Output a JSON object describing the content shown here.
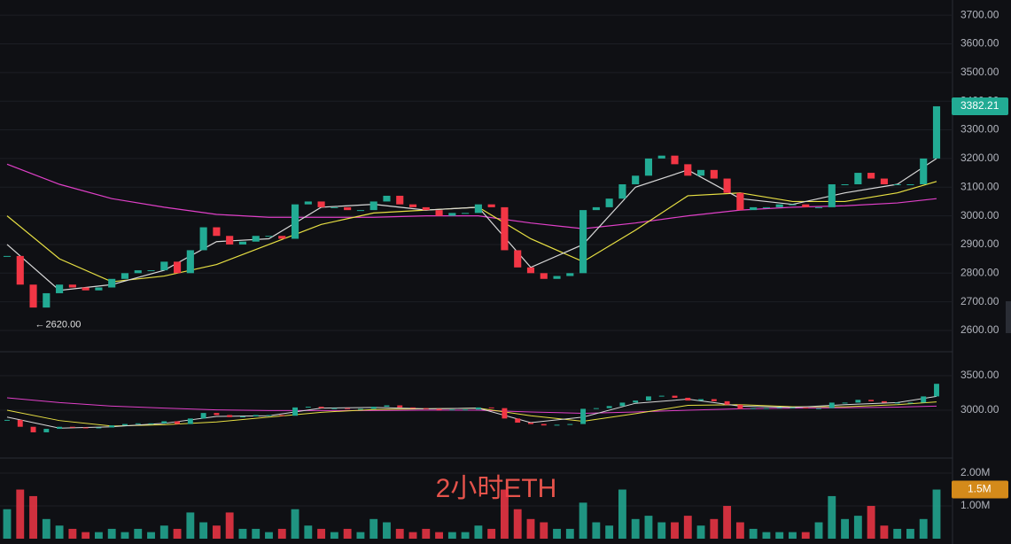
{
  "watermark": "2小时ETH",
  "chart_data": [
    {
      "type": "candlestick",
      "close": [
        2860,
        2760,
        2680,
        2730,
        2760,
        2750,
        2740,
        2750,
        2780,
        2800,
        2810,
        2810,
        2840,
        2800,
        2880,
        2960,
        2930,
        2900,
        2910,
        2930,
        2930,
        2920,
        3040,
        3050,
        3030,
        3030,
        3020,
        3020,
        3050,
        3070,
        3040,
        3030,
        3020,
        3000,
        3010,
        3010,
        3040,
        3030,
        2880,
        2820,
        2800,
        2780,
        2790,
        2800,
        3020,
        3030,
        3060,
        3110,
        3140,
        3200,
        3210,
        3180,
        3140,
        3160,
        3130,
        3080,
        3020,
        3030,
        3030,
        3040,
        3040,
        3030,
        3030,
        3110,
        3110,
        3150,
        3130,
        3110,
        3110,
        3110,
        3200,
        3382.21
      ],
      "up_color": "#22ab94",
      "down_color": "#f23645",
      "ylim": [
        2532,
        3753
      ],
      "yticks": [
        {
          "value": 3700,
          "label": "3700.00"
        },
        {
          "value": 3600,
          "label": "3600.00"
        },
        {
          "value": 3500,
          "label": "3500.00"
        },
        {
          "value": 3400,
          "label": "3400.00"
        },
        {
          "value": 3300,
          "label": "3300.00"
        },
        {
          "value": 3200,
          "label": "3200.00"
        },
        {
          "value": 3100,
          "label": "3100.00"
        },
        {
          "value": 3000,
          "label": "3000.00"
        },
        {
          "value": 2900,
          "label": "2900.00"
        },
        {
          "value": 2800,
          "label": "2800.00"
        },
        {
          "value": 2700,
          "label": "2700.00"
        },
        {
          "value": 2600,
          "label": "2600.00"
        }
      ],
      "ma_x": [
        0,
        4,
        8,
        12,
        16,
        20,
        24,
        28,
        32,
        36,
        40,
        44,
        48,
        52,
        56,
        60,
        64,
        68,
        71
      ],
      "series": [
        {
          "color": "#e040c8",
          "values": [
            3180,
            3110,
            3060,
            3030,
            3005,
            2995,
            2995,
            2995,
            3000,
            3000,
            2975,
            2955,
            2975,
            3000,
            3020,
            3030,
            3035,
            3045,
            3060
          ]
        },
        {
          "color": "#e8e043",
          "values": [
            3000,
            2850,
            2770,
            2790,
            2830,
            2900,
            2970,
            3010,
            3020,
            3030,
            2920,
            2840,
            2950,
            3070,
            3080,
            3050,
            3050,
            3080,
            3120
          ]
        },
        {
          "color": "#d8d8d8",
          "values": [
            2900,
            2740,
            2760,
            2810,
            2910,
            2920,
            3030,
            3040,
            3020,
            3030,
            2820,
            2900,
            3100,
            3160,
            3060,
            3040,
            3080,
            3110,
            3200
          ]
        }
      ],
      "min_marker": {
        "value": 2620,
        "label": "2620.00"
      },
      "last_price": {
        "value": 3382.21,
        "label": "3382.21"
      }
    },
    {
      "type": "overview",
      "ylim": [
        2333,
        3808
      ],
      "yticks": [
        {
          "value": 3500,
          "label": "3500.00"
        },
        {
          "value": 3000,
          "label": "3000.00"
        }
      ]
    },
    {
      "type": "volume",
      "values": [
        0.9,
        1.5,
        1.3,
        0.6,
        0.4,
        0.3,
        0.2,
        0.2,
        0.3,
        0.2,
        0.3,
        0.2,
        0.4,
        0.3,
        0.8,
        0.5,
        0.4,
        0.8,
        0.3,
        0.3,
        0.2,
        0.3,
        0.9,
        0.4,
        0.3,
        0.2,
        0.3,
        0.2,
        0.6,
        0.5,
        0.3,
        0.2,
        0.3,
        0.2,
        0.2,
        0.2,
        0.4,
        0.3,
        1.5,
        0.9,
        0.6,
        0.5,
        0.3,
        0.3,
        1.1,
        0.5,
        0.4,
        1.5,
        0.6,
        0.7,
        0.5,
        0.5,
        0.7,
        0.4,
        0.6,
        1.0,
        0.5,
        0.3,
        0.2,
        0.2,
        0.2,
        0.2,
        0.5,
        1.3,
        0.6,
        0.7,
        1.0,
        0.4,
        0.3,
        0.3,
        0.6,
        1.5
      ],
      "ylim": [
        0,
        2.38
      ],
      "yticks": [
        {
          "value": 2,
          "label": "2.00M"
        },
        {
          "value": 1,
          "label": "1.00M"
        }
      ],
      "last_label": {
        "value": 1.5,
        "label": "1.5M"
      }
    }
  ]
}
